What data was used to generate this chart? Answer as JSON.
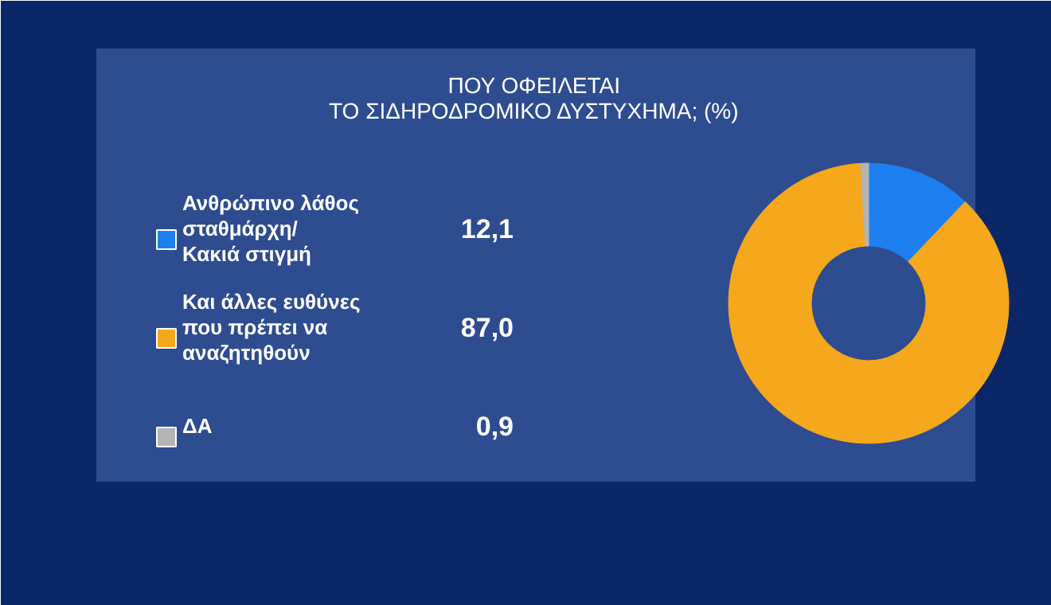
{
  "chart_data": {
    "type": "donut",
    "title": "ΠΟΥ ΟΦΕΙΛΕΤΑΙ\nΤΟ ΣΙΔΗΡΟΔΡΟΜΙΚΟ ΔΥΣΤΥΧΗΜΑ; (%)",
    "categories": [
      "Ανθρώπινο λάθος\nσταθμάρχη/\nΚακιά στιγμή",
      "Και άλλες ευθύνες\nπου πρέπει να\nαναζητηθούν",
      "ΔΑ"
    ],
    "values": [
      12.1,
      87.0,
      0.9
    ],
    "colors": [
      "#1e7ff0",
      "#f5a81c",
      "#b4b4b4"
    ],
    "value_labels": [
      "12,1",
      "87,0",
      "0,9"
    ],
    "legend": "left"
  }
}
